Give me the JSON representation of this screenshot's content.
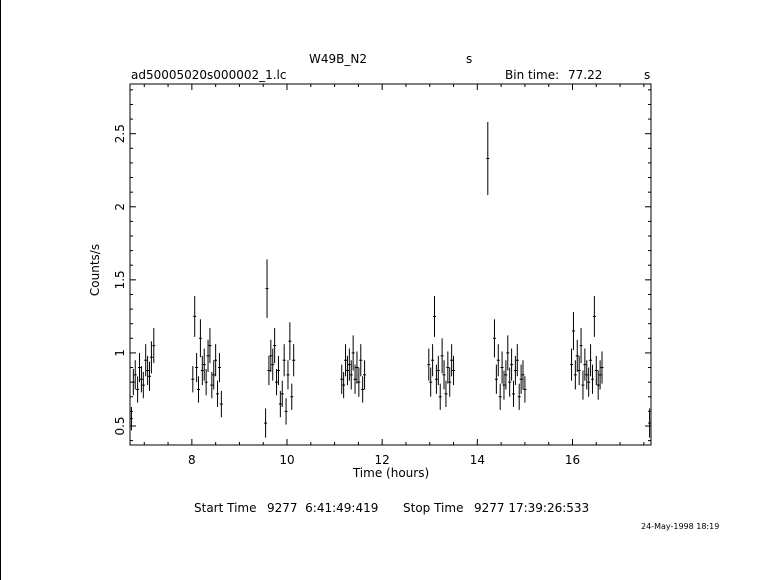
{
  "header": {
    "object_name": "W49B_N2",
    "object_unit": "s",
    "filename": "ad50005020s000002_1.lc",
    "bin_time_label": "Bin time:",
    "bin_time_value": "77.22",
    "bin_time_unit": "s"
  },
  "footer": {
    "start_label": "Start Time",
    "start_value": "9277  6:41:49:419",
    "stop_label": "Stop Time",
    "stop_value": "9277 17:39:26:533",
    "timestamp": "24-May-1998 18:19"
  },
  "chart_data": {
    "type": "scatter",
    "title": "W49B_N2",
    "xlabel": "Time (hours)",
    "ylabel": "Counts/s",
    "xlim": [
      6.7,
      17.65
    ],
    "ylim": [
      0.37,
      2.84
    ],
    "x_ticks": [
      8,
      10,
      12,
      14,
      16
    ],
    "y_ticks": [
      0.5,
      1,
      1.5,
      2,
      2.5
    ],
    "x_tick_labels": [
      "8",
      "10",
      "12",
      "14",
      "16"
    ],
    "y_tick_labels": [
      "0.5",
      "1",
      "1.5",
      "2",
      "2.5"
    ],
    "grid": false,
    "series": [
      {
        "x": [
          6.73,
          6.77,
          6.81,
          6.86,
          6.9,
          6.94,
          6.98,
          7.03,
          7.07,
          7.11,
          7.15,
          7.2,
          8.02,
          8.06,
          8.1,
          8.14,
          8.18,
          8.22,
          8.26,
          8.3,
          8.34,
          8.38,
          8.42,
          8.46,
          8.5,
          8.54,
          8.58,
          8.62,
          9.55,
          9.58,
          9.62,
          9.66,
          9.7,
          9.74,
          9.78,
          9.82,
          9.86,
          9.9,
          9.94,
          9.98,
          10.02,
          10.06,
          10.1,
          10.14,
          11.15,
          11.19,
          11.23,
          11.27,
          11.31,
          11.35,
          11.39,
          11.43,
          11.47,
          11.51,
          11.55,
          11.59,
          11.63,
          12.98,
          13.02,
          13.06,
          13.1,
          13.14,
          13.18,
          13.22,
          13.26,
          13.3,
          13.34,
          13.38,
          13.42,
          13.46,
          13.5,
          14.22,
          14.36,
          14.4,
          14.44,
          14.48,
          14.52,
          14.56,
          14.6,
          14.64,
          14.68,
          14.72,
          14.76,
          14.8,
          14.84,
          14.88,
          14.92,
          14.96,
          15.0,
          15.98,
          16.02,
          16.06,
          16.1,
          16.14,
          16.18,
          16.22,
          16.26,
          16.3,
          16.34,
          16.38,
          16.42,
          16.46,
          16.5,
          16.54,
          16.58,
          16.62,
          17.62
        ],
        "y": [
          0.55,
          0.8,
          0.85,
          0.75,
          0.9,
          0.82,
          0.78,
          0.95,
          0.88,
          0.84,
          0.97,
          1.05,
          0.82,
          1.25,
          0.9,
          0.75,
          1.1,
          0.88,
          0.92,
          0.8,
          0.98,
          1.05,
          0.78,
          0.85,
          0.95,
          0.72,
          0.9,
          0.65,
          0.52,
          1.44,
          0.88,
          0.98,
          0.92,
          1.05,
          0.8,
          0.88,
          0.65,
          0.72,
          0.95,
          0.6,
          0.85,
          1.08,
          0.7,
          0.95,
          0.82,
          0.78,
          0.95,
          0.88,
          0.92,
          0.85,
          1.0,
          0.82,
          0.9,
          0.8,
          0.95,
          0.75,
          0.85,
          0.92,
          0.8,
          0.95,
          1.25,
          0.82,
          0.88,
          0.7,
          0.98,
          0.85,
          0.72,
          0.9,
          0.8,
          0.95,
          0.88,
          2.33,
          1.1,
          0.82,
          0.95,
          0.7,
          0.9,
          0.78,
          0.85,
          1.0,
          0.8,
          0.92,
          0.72,
          0.88,
          0.95,
          0.7,
          0.82,
          0.85,
          0.75,
          0.92,
          1.15,
          0.85,
          0.98,
          0.88,
          1.05,
          0.78,
          0.92,
          0.85,
          0.8,
          0.95,
          0.82,
          1.25,
          0.88,
          0.78,
          0.85,
          0.9,
          0.52
        ],
        "err": [
          0.08,
          0.09,
          0.1,
          0.09,
          0.1,
          0.09,
          0.09,
          0.11,
          0.1,
          0.1,
          0.11,
          0.12,
          0.09,
          0.14,
          0.1,
          0.09,
          0.13,
          0.1,
          0.11,
          0.09,
          0.11,
          0.12,
          0.09,
          0.1,
          0.11,
          0.09,
          0.1,
          0.09,
          0.1,
          0.2,
          0.1,
          0.11,
          0.11,
          0.12,
          0.09,
          0.1,
          0.09,
          0.09,
          0.11,
          0.09,
          0.1,
          0.13,
          0.09,
          0.11,
          0.1,
          0.09,
          0.11,
          0.1,
          0.11,
          0.1,
          0.12,
          0.1,
          0.11,
          0.1,
          0.11,
          0.09,
          0.1,
          0.11,
          0.1,
          0.11,
          0.14,
          0.1,
          0.1,
          0.09,
          0.12,
          0.1,
          0.09,
          0.11,
          0.1,
          0.11,
          0.1,
          0.25,
          0.13,
          0.1,
          0.11,
          0.09,
          0.11,
          0.1,
          0.1,
          0.12,
          0.1,
          0.11,
          0.09,
          0.1,
          0.11,
          0.09,
          0.1,
          0.1,
          0.09,
          0.11,
          0.13,
          0.1,
          0.11,
          0.1,
          0.12,
          0.1,
          0.11,
          0.1,
          0.1,
          0.11,
          0.1,
          0.14,
          0.1,
          0.1,
          0.1,
          0.11,
          0.1
        ]
      }
    ]
  }
}
